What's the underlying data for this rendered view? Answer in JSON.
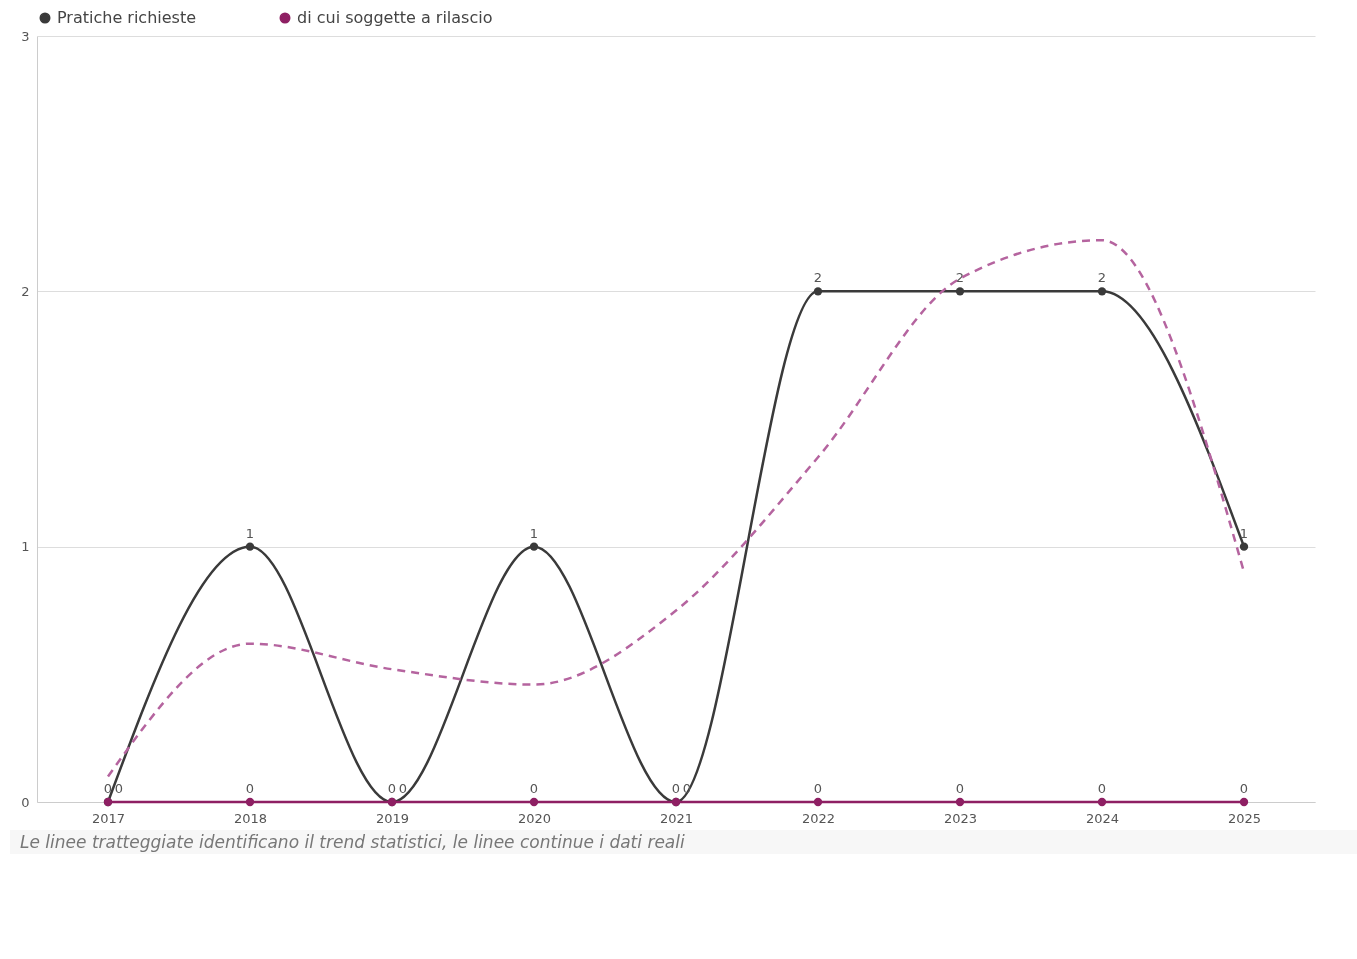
{
  "chart_data": {
    "type": "line",
    "categories": [
      "2017",
      "2018",
      "2019",
      "2020",
      "2021",
      "2022",
      "2023",
      "2024",
      "2025"
    ],
    "series": [
      {
        "name": "Pratiche richieste",
        "color": "#3a3a3a",
        "values": [
          0,
          1,
          0,
          1,
          0,
          2,
          2,
          2,
          1
        ],
        "value_labels": [
          "0",
          "1",
          "0",
          "1",
          "0",
          "2",
          "2",
          "2",
          "1"
        ],
        "marker": "circle",
        "line_style": "solid"
      },
      {
        "name": "di cui soggette a rilascio",
        "color": "#8e1f63",
        "values": [
          0,
          0,
          0,
          0,
          0,
          0,
          0,
          0,
          0
        ],
        "value_labels": [
          "0",
          "0",
          "0",
          "0",
          "0",
          "0",
          "0",
          "0",
          "0"
        ],
        "marker": "circle",
        "line_style": "solid"
      },
      {
        "type": "line",
        "color": "#b5649f",
        "values": [
          0.1,
          0.62,
          0.52,
          0.46,
          0.75,
          1.35,
          2.05,
          2.2,
          0.9
        ],
        "marker": "none",
        "line_style": "dashed"
      }
    ],
    "ylim": [
      0,
      3
    ],
    "yticks": [
      0,
      1,
      2,
      3
    ],
    "grid": "y",
    "legend": "top left",
    "annotations": [
      "Le linee tratteggiate identificano il trend statistici, le linee continue i dati reali"
    ]
  }
}
